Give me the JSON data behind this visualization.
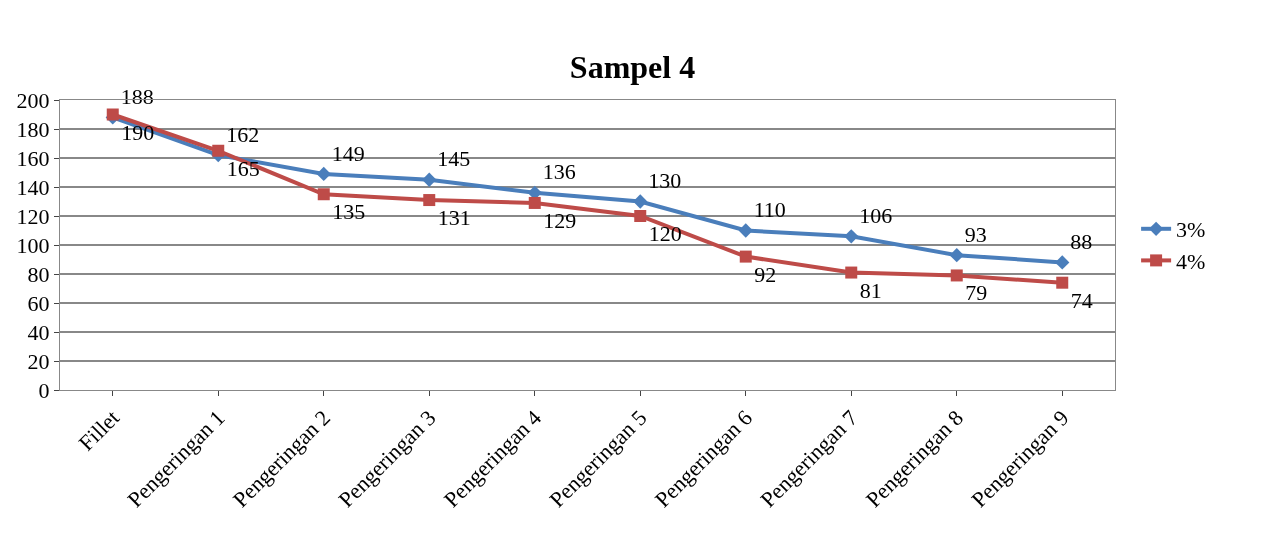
{
  "chart_data": {
    "type": "line",
    "title": "Sampel 4",
    "categories": [
      "Fillet",
      "Pengeringan 1",
      "Pengeringan 2",
      "Pengeringan 3",
      "Pengeringan 4",
      "Pengeringan 5",
      "Pengeringan 6",
      "Pengeringan 7",
      "Pengeringan 8",
      "Pengeringan 9"
    ],
    "series": [
      {
        "name": "3%",
        "color": "#4a7ebb",
        "marker": "diamond",
        "values": [
          188,
          162,
          149,
          145,
          136,
          130,
          110,
          106,
          93,
          88
        ]
      },
      {
        "name": "4%",
        "color": "#be4b48",
        "marker": "square",
        "values": [
          190,
          165,
          135,
          131,
          129,
          120,
          92,
          81,
          79,
          74
        ]
      }
    ],
    "ylim": [
      0,
      200
    ],
    "yticks": [
      0,
      20,
      40,
      60,
      80,
      100,
      120,
      140,
      160,
      180,
      200
    ],
    "grid": "y",
    "legend": "right",
    "data_labels": true,
    "line_style": "solid"
  }
}
